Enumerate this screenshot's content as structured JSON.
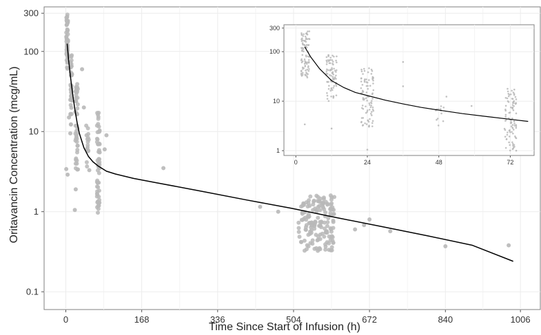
{
  "chart_data": [
    {
      "type": "scatter",
      "title": "",
      "xlabel": "Time Since Start of Infusion (h)",
      "ylabel": "Oritavancin Concentration (mcg/mL)",
      "x_ticks": [
        0,
        168,
        336,
        504,
        672,
        840,
        1006
      ],
      "y_ticks": [
        0.1,
        1,
        10,
        100,
        300
      ],
      "y_tick_labels": [
        "0.1",
        "1",
        "10",
        "100",
        "300"
      ],
      "xlim": [
        -48,
        1050
      ],
      "ylim": [
        0.06,
        360
      ],
      "yscale": "log",
      "grid": true,
      "series": [
        {
          "kind": "points",
          "color": "#b8b8b8",
          "clusters": [
            {
              "x_center": 3,
              "x_spread": 2,
              "y_min": 60,
              "y_max": 290,
              "n": 55
            },
            {
              "x_center": 12,
              "x_spread": 2,
              "y_min": 12,
              "y_max": 90,
              "n": 40
            },
            {
              "x_center": 24,
              "x_spread": 3,
              "y_min": 3,
              "y_max": 40,
              "n": 45
            },
            {
              "x_center": 48,
              "x_spread": 3,
              "y_min": 3,
              "y_max": 12,
              "n": 14
            },
            {
              "x_center": 72,
              "x_spread": 3,
              "y_min": 0.95,
              "y_max": 18,
              "n": 55
            },
            {
              "x_center": 555,
              "x_spread": 40,
              "y_min": 0.32,
              "y_max": 1.6,
              "n": 160
            }
          ],
          "points": [
            {
              "x": 1,
              "y": 3.4
            },
            {
              "x": 4,
              "y": 2.9
            },
            {
              "x": 7,
              "y": 15
            },
            {
              "x": 10,
              "y": 9.5
            },
            {
              "x": 20,
              "y": 1.05
            },
            {
              "x": 22,
              "y": 1.9
            },
            {
              "x": 36,
              "y": 60
            },
            {
              "x": 40,
              "y": 20
            },
            {
              "x": 46,
              "y": 9
            },
            {
              "x": 52,
              "y": 3.3
            },
            {
              "x": 86,
              "y": 6
            },
            {
              "x": 90,
              "y": 9
            },
            {
              "x": 75,
              "y": 5.5
            },
            {
              "x": 216,
              "y": 3.5
            },
            {
              "x": 430,
              "y": 1.15
            },
            {
              "x": 470,
              "y": 1.0
            },
            {
              "x": 660,
              "y": 0.68
            },
            {
              "x": 672,
              "y": 0.8
            },
            {
              "x": 640,
              "y": 0.6
            },
            {
              "x": 718,
              "y": 0.57
            },
            {
              "x": 840,
              "y": 0.37
            },
            {
              "x": 980,
              "y": 0.38
            }
          ]
        },
        {
          "kind": "line",
          "color": "#000000",
          "x": [
            3,
            6,
            10,
            15,
            20,
            25,
            30,
            40,
            50,
            60,
            72,
            90,
            110,
            150,
            200,
            300,
            400,
            500,
            600,
            700,
            800,
            900,
            990
          ],
          "y": [
            125,
            80,
            50,
            30,
            19,
            13,
            9.5,
            6.3,
            4.9,
            4.2,
            3.7,
            3.2,
            2.95,
            2.6,
            2.3,
            1.8,
            1.4,
            1.1,
            0.84,
            0.65,
            0.5,
            0.38,
            0.24
          ]
        }
      ]
    },
    {
      "type": "scatter",
      "title": "",
      "xlabel": "",
      "ylabel": "",
      "x_ticks": [
        0,
        24,
        48,
        72
      ],
      "y_ticks": [
        1,
        10,
        100,
        300
      ],
      "y_tick_labels": [
        "1",
        "10",
        "100",
        "300"
      ],
      "xlim": [
        -4,
        80
      ],
      "ylim": [
        0.8,
        350
      ],
      "yscale": "log",
      "grid": true,
      "series": [
        {
          "kind": "points",
          "color": "#b8b8b8",
          "clusters": [
            {
              "x_center": 3.2,
              "x_spread": 1.4,
              "y_min": 30,
              "y_max": 280,
              "n": 90
            },
            {
              "x_center": 12,
              "x_spread": 1.8,
              "y_min": 10,
              "y_max": 90,
              "n": 80
            },
            {
              "x_center": 24,
              "x_spread": 2.2,
              "y_min": 3,
              "y_max": 50,
              "n": 90
            },
            {
              "x_center": 49,
              "x_spread": 1.8,
              "y_min": 3,
              "y_max": 15,
              "n": 12
            },
            {
              "x_center": 72,
              "x_spread": 2,
              "y_min": 1.0,
              "y_max": 18,
              "n": 90
            }
          ],
          "points": [
            {
              "x": 3,
              "y": 3.4
            },
            {
              "x": 12,
              "y": 2.8
            },
            {
              "x": 24,
              "y": 1.05
            },
            {
              "x": 36,
              "y": 62
            },
            {
              "x": 36,
              "y": 20
            },
            {
              "x": 47,
              "y": 6.5
            },
            {
              "x": 59,
              "y": 8
            },
            {
              "x": 74,
              "y": 1.0
            }
          ]
        },
        {
          "kind": "line",
          "color": "#000000",
          "x": [
            3,
            5,
            8,
            12,
            16,
            20,
            24,
            30,
            36,
            42,
            48,
            56,
            64,
            72,
            78
          ],
          "y": [
            125,
            78,
            45,
            26,
            19,
            15,
            13,
            10.5,
            8.8,
            7.5,
            6.6,
            5.6,
            4.9,
            4.3,
            3.9
          ]
        }
      ]
    }
  ]
}
